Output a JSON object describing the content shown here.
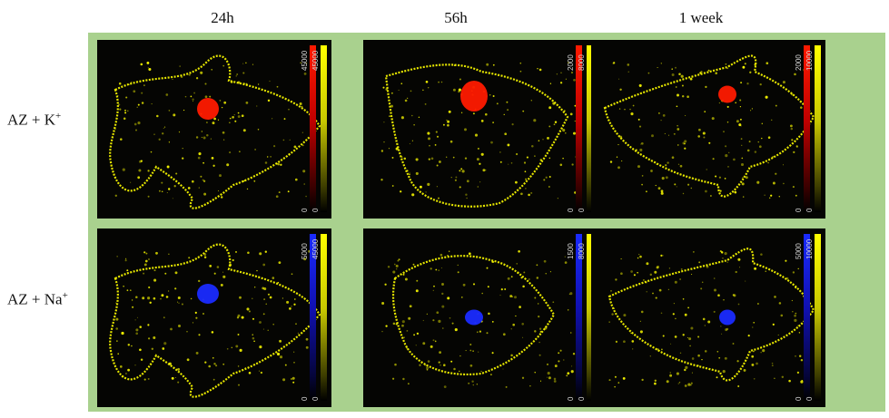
{
  "columns": [
    "24h",
    "56h",
    "1 week"
  ],
  "rows": [
    {
      "label_base": "AZ + K",
      "label_sup": "+"
    },
    {
      "label_base": "AZ + Na",
      "label_sup": "+"
    }
  ],
  "panels": [
    {
      "blob": "red",
      "ion_max": "45000",
      "ion_min": "0",
      "p_max": "45000",
      "p_min": "0"
    },
    {
      "blob": "red",
      "ion_max": "2000",
      "ion_min": "0",
      "p_max": "8000",
      "p_min": "0"
    },
    {
      "blob": "red",
      "ion_max": "2000",
      "ion_min": "0",
      "p_max": "10000",
      "p_min": "0"
    },
    {
      "blob": "blue",
      "ion_max": "5000",
      "ion_min": "0",
      "p_max": "45000",
      "p_min": "0"
    },
    {
      "blob": "blue",
      "ion_max": "1500",
      "ion_min": "0",
      "p_max": "8000",
      "p_min": "0"
    },
    {
      "blob": "blue",
      "ion_max": "5000",
      "ion_min": "0",
      "p_max": "10000",
      "p_min": "0"
    }
  ],
  "colors": {
    "frame": "#a9d18e",
    "k_ion": "#ff1a00",
    "na_ion": "#1a2bff",
    "tissue": "#ffff00",
    "panel_bg": "#050503"
  }
}
